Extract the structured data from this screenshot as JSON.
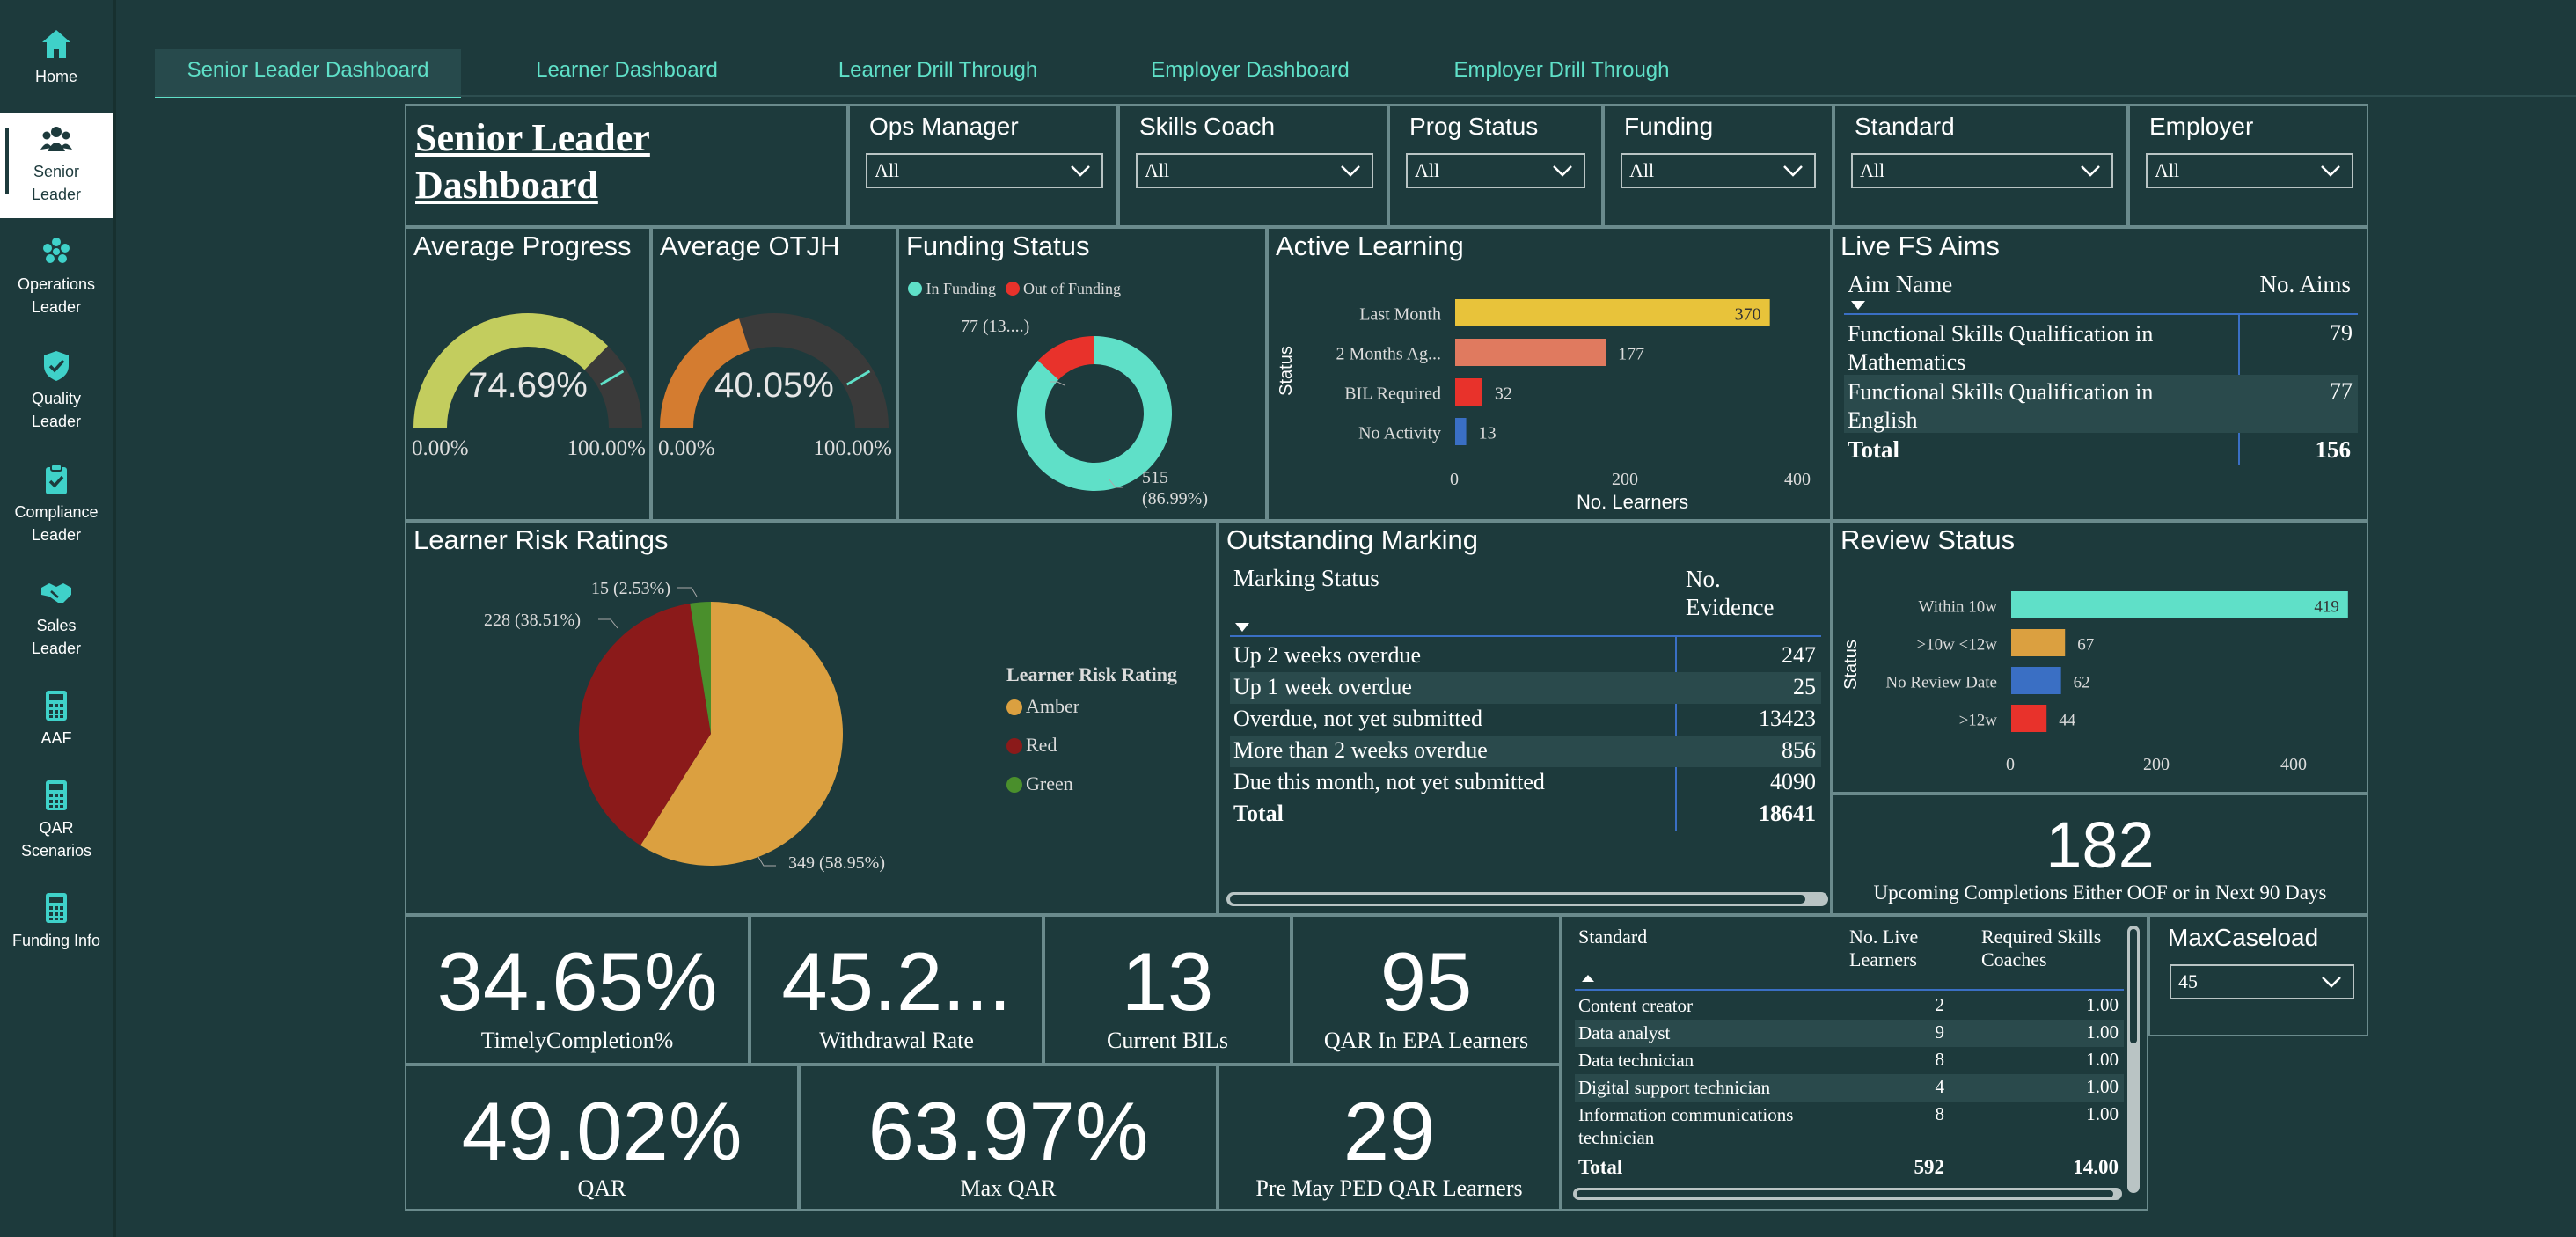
{
  "sidebar": {
    "items": [
      {
        "label": "Home",
        "icon": "home-icon"
      },
      {
        "label": "Senior Leader",
        "icon": "people-icon"
      },
      {
        "label": "Operations Leader",
        "icon": "group-icon"
      },
      {
        "label": "Quality Leader",
        "icon": "shield-check-icon"
      },
      {
        "label": "Compliance Leader",
        "icon": "clipboard-check-icon"
      },
      {
        "label": "Sales Leader",
        "icon": "handshake-icon"
      },
      {
        "label": "AAF",
        "icon": "calculator-icon"
      },
      {
        "label": "QAR Scenarios",
        "icon": "calculator-icon"
      },
      {
        "label": "Funding Info",
        "icon": "calculator-icon"
      }
    ]
  },
  "tabs": [
    "Senior Leader Dashboard",
    "Learner Dashboard",
    "Learner Drill Through",
    "Employer Dashboard",
    "Employer Drill Through"
  ],
  "page_title": "Senior Leader Dashboard",
  "slicers": [
    {
      "title": "Ops Manager",
      "value": "All"
    },
    {
      "title": "Skills Coach",
      "value": "All"
    },
    {
      "title": "Prog Status",
      "value": "All"
    },
    {
      "title": "Funding",
      "value": "All"
    },
    {
      "title": "Standard",
      "value": "All"
    },
    {
      "title": "Employer",
      "value": "All"
    }
  ],
  "gauges": [
    {
      "title": "Average Progress",
      "value": "74.69%",
      "fraction": 0.7469,
      "min": "0.00%",
      "max": "100.00%",
      "color": "#c3cd5e"
    },
    {
      "title": "Average OTJH",
      "value": "40.05%",
      "fraction": 0.4005,
      "min": "0.00%",
      "max": "100.00%",
      "color": "#d47c30"
    }
  ],
  "funding_status": {
    "title": "Funding Status",
    "legend": [
      {
        "label": "In Funding",
        "color": "#5fe0c8"
      },
      {
        "label": "Out of Funding",
        "color": "#e8322b"
      }
    ],
    "label_out": "77 (13....)",
    "label_in_1": "515",
    "label_in_2": "(86.99%)"
  },
  "active_learning": {
    "title": "Active Learning",
    "axis_label_y": "Status",
    "axis_label_x": "No. Learners",
    "ticks": [
      "0",
      "200",
      "400"
    ]
  },
  "live_fs": {
    "title": "Live FS Aims",
    "col1": "Aim Name",
    "col2": "No. Aims",
    "rows": [
      {
        "line1": "Functional Skills Qualification in",
        "line2": "Mathematics",
        "value": "79"
      },
      {
        "line1": "Functional Skills Qualification in",
        "line2": "English",
        "value": "77"
      }
    ],
    "total_label": "Total",
    "total_value": "156"
  },
  "risk": {
    "title": "Learner Risk Ratings",
    "legend_title": "Learner Risk Rating",
    "legend": [
      {
        "label": "Amber",
        "color": "#dba040"
      },
      {
        "label": "Red",
        "color": "#8b1a1a"
      },
      {
        "label": "Green",
        "color": "#4a8f2c"
      }
    ],
    "label_green": "15 (2.53%)",
    "label_red": "228 (38.51%)",
    "label_amber": "349 (58.95%)"
  },
  "marking": {
    "title": "Outstanding Marking",
    "col1": "Marking Status",
    "col2_1": "No.",
    "col2_2": "Evidence",
    "rows": [
      {
        "label": "Up 2 weeks overdue",
        "value": "247"
      },
      {
        "label": "Up 1 week overdue",
        "value": "25"
      },
      {
        "label": "Overdue, not yet submitted",
        "value": "13423"
      },
      {
        "label": "More than 2 weeks overdue",
        "value": "856"
      },
      {
        "label": "Due this month, not yet submitted",
        "value": "4090"
      }
    ],
    "total_label": "Total",
    "total_value": "18641"
  },
  "review": {
    "title": "Review Status",
    "axis_label_y": "Status",
    "ticks": [
      "0",
      "200",
      "400"
    ]
  },
  "upcoming": {
    "value": "182",
    "label": "Upcoming Completions Either OOF or in Next 90 Days"
  },
  "kpis": [
    {
      "value": "34.65%",
      "label": "TimelyCompletion%"
    },
    {
      "value": "45.2...",
      "label": "Withdrawal Rate"
    },
    {
      "value": "13",
      "label": "Current BILs"
    },
    {
      "value": "95",
      "label": "QAR In EPA Learners"
    },
    {
      "value": "49.02%",
      "label": "QAR"
    },
    {
      "value": "63.97%",
      "label": "Max QAR"
    },
    {
      "value": "29",
      "label": "Pre May PED QAR Learners"
    }
  ],
  "standards": {
    "col1": "Standard",
    "col2_1": "No. Live",
    "col2_2": "Learners",
    "col3_1": "Required Skills",
    "col3_2": "Coaches",
    "rows": [
      {
        "name": "Content creator",
        "learners": "2",
        "coaches": "1.00"
      },
      {
        "name": "Data analyst",
        "learners": "9",
        "coaches": "1.00"
      },
      {
        "name": "Data technician",
        "learners": "8",
        "coaches": "1.00"
      },
      {
        "name": "Digital support technician",
        "learners": "4",
        "coaches": "1.00"
      },
      {
        "name": "Information communications",
        "name2": "technician",
        "learners": "8",
        "coaches": "1.00"
      }
    ],
    "total_label": "Total",
    "total_learners": "592",
    "total_coaches": "14.00"
  },
  "maxcaseload": {
    "title": "MaxCaseload",
    "value": "45"
  },
  "chart_data": [
    {
      "type": "bar",
      "title": "Active Learning",
      "xlabel": "No. Learners",
      "ylabel": "Status",
      "categories": [
        "Last Month",
        "2 Months Ag...",
        "BIL Required",
        "No Activity"
      ],
      "values": [
        370,
        177,
        32,
        13
      ],
      "colors": [
        "#e8c33a",
        "#e07a5f",
        "#e8322b",
        "#3a6fc4"
      ],
      "xlim": [
        0,
        420
      ]
    },
    {
      "type": "bar",
      "title": "Review Status",
      "xlabel": "",
      "ylabel": "Status",
      "categories": [
        "Within 10w",
        ">10w <12w",
        "No Review Date",
        ">12w"
      ],
      "values": [
        419,
        67,
        62,
        44
      ],
      "colors": [
        "#5fe0c8",
        "#dba040",
        "#3a6fc4",
        "#e8322b"
      ],
      "xlim": [
        0,
        440
      ]
    },
    {
      "type": "pie",
      "title": "Learner Risk Ratings",
      "categories": [
        "Amber",
        "Red",
        "Green"
      ],
      "values": [
        349,
        228,
        15
      ],
      "percent": [
        58.95,
        38.51,
        2.53
      ]
    },
    {
      "type": "pie",
      "title": "Funding Status",
      "categories": [
        "In Funding",
        "Out of Funding"
      ],
      "values": [
        515,
        77
      ],
      "percent": [
        86.99,
        13.01
      ]
    }
  ]
}
